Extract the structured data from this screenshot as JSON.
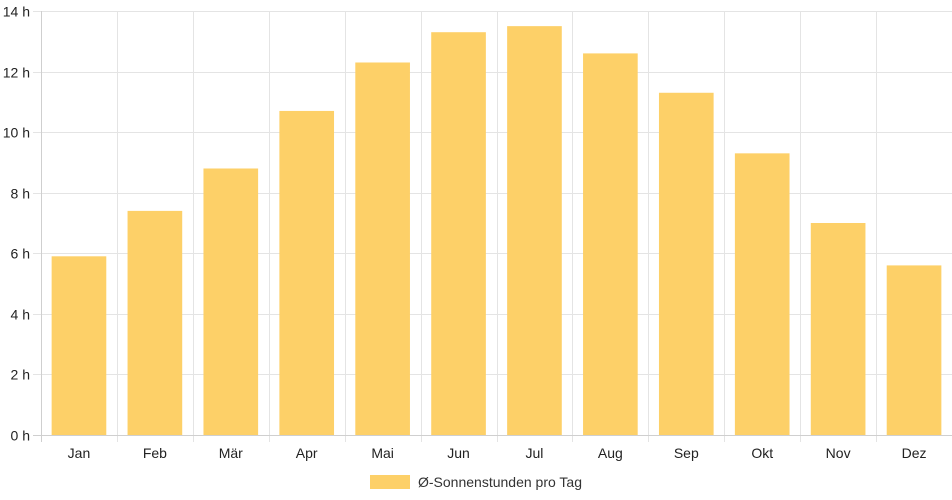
{
  "chart_data": {
    "type": "bar",
    "categories": [
      "Jan",
      "Feb",
      "Mär",
      "Apr",
      "Mai",
      "Jun",
      "Jul",
      "Aug",
      "Sep",
      "Okt",
      "Nov",
      "Dez"
    ],
    "series": [
      {
        "name": "Ø-Sonnenstunden pro Tag",
        "values": [
          5.9,
          7.4,
          8.8,
          10.7,
          12.3,
          13.3,
          13.5,
          12.6,
          11.3,
          9.3,
          7.0,
          5.6
        ],
        "color": "#fdd068"
      }
    ],
    "yticks": [
      "0 h",
      "2 h",
      "4 h",
      "6 h",
      "8 h",
      "10 h",
      "12 h",
      "14 h"
    ],
    "ylim": [
      0,
      14
    ],
    "grid": true,
    "legend_position": "bottom"
  }
}
